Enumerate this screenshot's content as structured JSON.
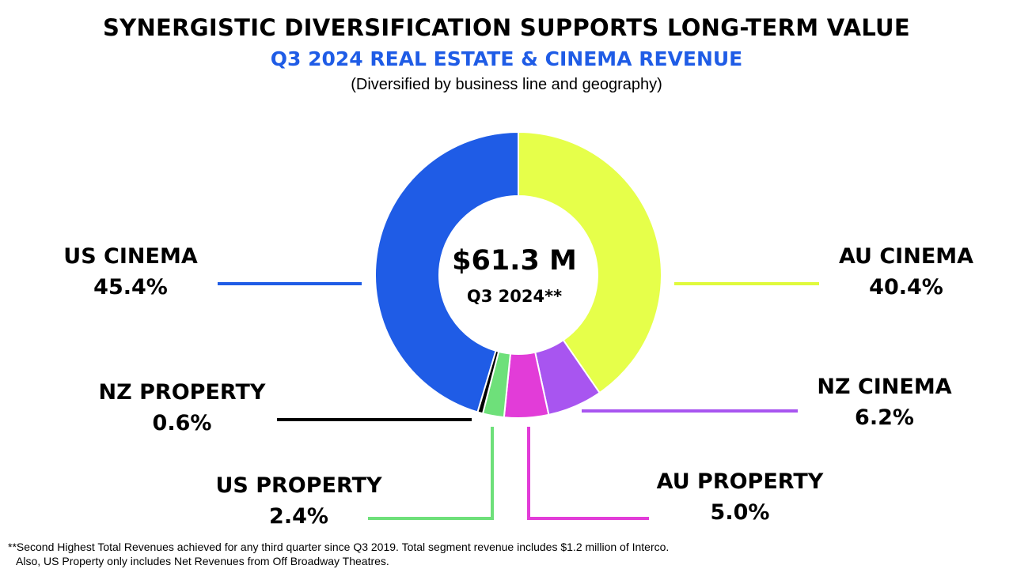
{
  "header": {
    "title": "SYNERGISTIC DIVERSIFICATION SUPPORTS LONG-TERM VALUE",
    "subtitle": "Q3 2024 REAL ESTATE & CINEMA REVENUE",
    "note": "(Diversified by business line and geography)"
  },
  "chart_data": {
    "type": "pie",
    "variant": "donut",
    "title": "Q3 2024 REAL ESTATE & CINEMA REVENUE",
    "center_total": "$61.3 M",
    "center_period": "Q3 2024**",
    "slices": [
      {
        "name": "AU CINEMA",
        "value": 40.4,
        "label": "40.4%",
        "color": "#e6ff4a"
      },
      {
        "name": "NZ CINEMA",
        "value": 6.2,
        "label": "6.2%",
        "color": "#a855f0"
      },
      {
        "name": "AU PROPERTY",
        "value": 5.0,
        "label": "5.0%",
        "color": "#e23cd8"
      },
      {
        "name": "US PROPERTY",
        "value": 2.4,
        "label": "2.4%",
        "color": "#6ee07a"
      },
      {
        "name": "NZ PROPERTY",
        "value": 0.6,
        "label": "0.6%",
        "color": "#000000"
      },
      {
        "name": "US CINEMA",
        "value": 45.4,
        "label": "45.4%",
        "color": "#1f5ce6"
      }
    ]
  },
  "footnote": {
    "line1": "**Second Highest Total Revenues achieved for any third quarter since Q3 2019. Total segment revenue includes $1.2 million of Interco.",
    "line2": "Also, US Property only includes Net Revenues from Off Broadway Theatres."
  }
}
